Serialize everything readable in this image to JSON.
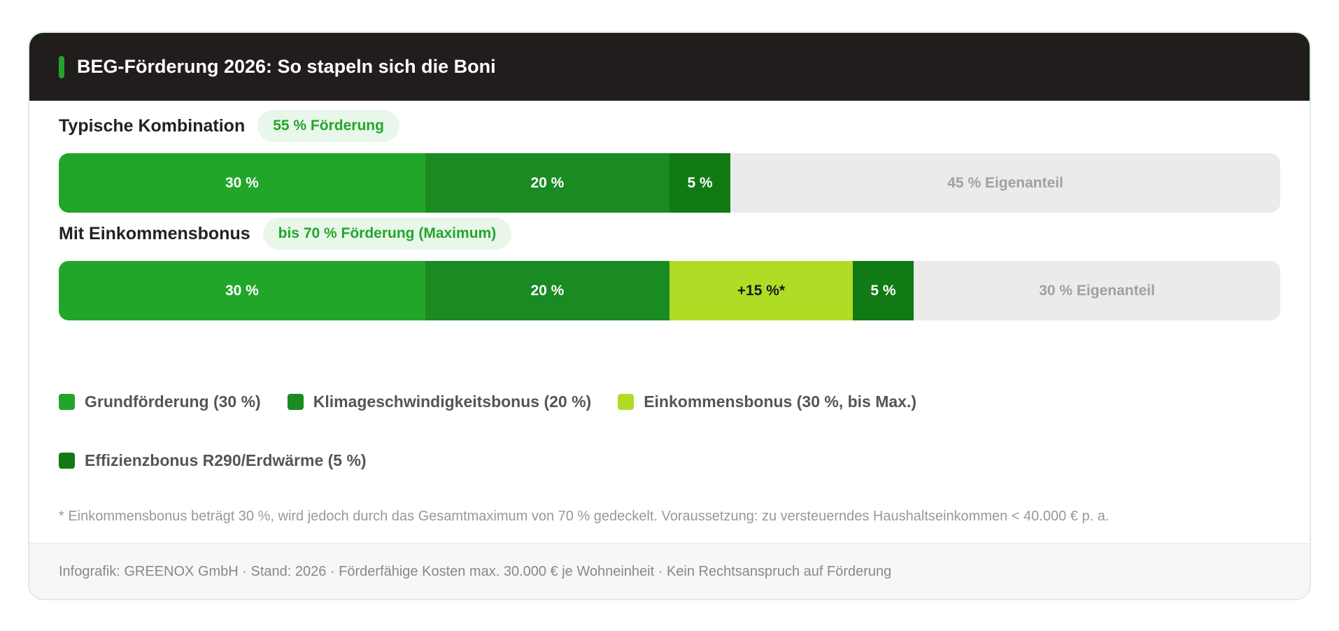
{
  "title": "BEG-Förderung 2026: So stapeln sich die Boni",
  "colors": {
    "header": "#211d1c",
    "grund": "#22a62a",
    "klima": "#1a8a22",
    "effizienz": "#117a14",
    "einkommen": "#b0dc26",
    "eigen": "#ebebeb"
  },
  "chart_data": {
    "type": "bar",
    "orientation": "horizontal-stacked",
    "xlim": [
      0,
      100
    ],
    "bars": [
      {
        "label": "Typische Kombination",
        "badge": "55 % Förderung",
        "segments": [
          {
            "key": "grund",
            "value": 30,
            "label": "30 %"
          },
          {
            "key": "klima",
            "value": 20,
            "label": "20 %"
          },
          {
            "key": "effizienz",
            "value": 5,
            "label": "5 %"
          },
          {
            "key": "eigen",
            "value": 45,
            "label": "45 % Eigenanteil"
          }
        ]
      },
      {
        "label": "Mit Einkommensbonus",
        "badge": "bis 70 % Förderung (Maximum)",
        "segments": [
          {
            "key": "grund",
            "value": 30,
            "label": "30 %"
          },
          {
            "key": "klima",
            "value": 20,
            "label": "20 %"
          },
          {
            "key": "einkommen",
            "value": 15,
            "label": "+15 %*"
          },
          {
            "key": "effizienz",
            "value": 5,
            "label": "5 %"
          },
          {
            "key": "eigen",
            "value": 30,
            "label": "30 % Eigenanteil"
          }
        ]
      }
    ],
    "legend": [
      {
        "key": "grund",
        "label": "Grundförderung (30 %)"
      },
      {
        "key": "klima",
        "label": "Klimageschwindigkeitsbonus (20 %)"
      },
      {
        "key": "einkommen",
        "label": "Einkommensbonus (30 %, bis Max.)"
      },
      {
        "key": "effizienz",
        "label": "Effizienzbonus R290/Erdwärme (5 %)"
      }
    ]
  },
  "footnote": "* Einkommensbonus beträgt 30 %, wird jedoch durch das Gesamtmaximum von 70 % gedeckelt. Voraussetzung: zu versteuerndes Haushaltseinkommen < 40.000 € p. a.",
  "footer": "Infografik: GREENOX GmbH · Stand: 2026 · Förderfähige Kosten max. 30.000 € je Wohneinheit · Kein Rechtsanspruch auf Förderung"
}
